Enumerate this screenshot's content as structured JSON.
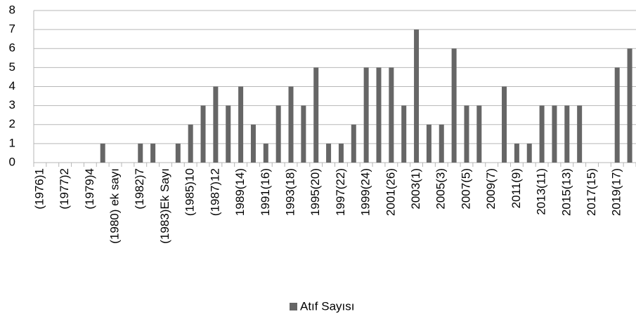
{
  "chart_data": {
    "type": "bar",
    "categories": [
      "(1976)1",
      null,
      "(1977)2",
      null,
      "(1979)4",
      null,
      "(1980) ek sayı",
      null,
      "(1982)7",
      null,
      "(1983)Ek Sayı",
      null,
      "(1985)10",
      null,
      "(1987)12",
      null,
      "1989(14)",
      null,
      "1991(16)",
      null,
      "1993(18)",
      null,
      "1995(20)",
      null,
      "1997(22)",
      null,
      "1999(24)",
      null,
      "2001(26)",
      null,
      "2003(1)",
      null,
      "2005(3)",
      null,
      "2007(5)",
      null,
      "2009(7)",
      null,
      "2011(9)",
      null,
      "2013(11)",
      null,
      "2015(13)",
      null,
      "2017(15)",
      null,
      "2019(17)",
      null
    ],
    "series": [
      {
        "name": "Atıf Sayısı",
        "color": "#666666",
        "values": [
          0,
          0,
          0,
          0,
          0,
          1,
          0,
          0,
          1,
          1,
          0,
          1,
          2,
          3,
          4,
          3,
          4,
          2,
          1,
          3,
          4,
          3,
          5,
          1,
          1,
          2,
          5,
          5,
          5,
          3,
          7,
          2,
          2,
          6,
          3,
          3,
          0,
          4,
          1,
          1,
          3,
          3,
          3,
          3,
          0,
          0,
          5,
          6
        ]
      }
    ],
    "ylim": [
      0,
      8
    ],
    "yticks": [
      0,
      1,
      2,
      3,
      4,
      5,
      6,
      7,
      8
    ],
    "grid": true,
    "legend": "bottom"
  }
}
